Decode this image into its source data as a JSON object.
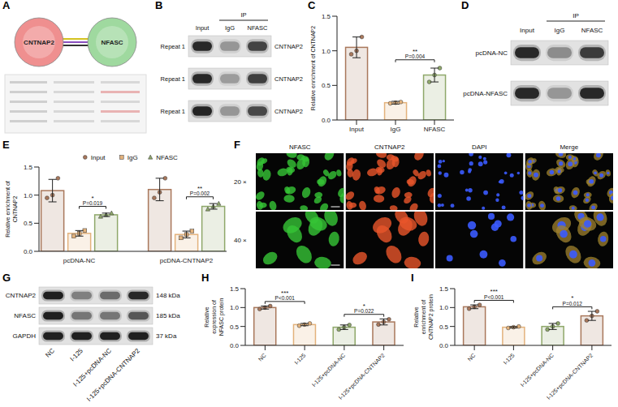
{
  "chart_data": [
    {
      "panel": "C",
      "type": "bar",
      "categories": [
        "Input",
        "IgG",
        "NFASC"
      ],
      "values": [
        1.05,
        0.25,
        0.65
      ],
      "errors": [
        0.15,
        0.02,
        0.1
      ],
      "points": [
        [
          0.95,
          1.0,
          1.2
        ],
        [
          0.24,
          0.25,
          0.26
        ],
        [
          0.55,
          0.65,
          0.75
        ]
      ],
      "colors": [
        "#a9785c",
        "#e3b27c",
        "#8fa86a"
      ],
      "marker": "circle",
      "ylabel": "Relative enrichment of CNTNAP2",
      "ylim": [
        0,
        1.5
      ],
      "yticks": [
        {
          "value": 0,
          "label": "0.0"
        },
        0.5,
        {
          "value": 1,
          "label": "1.0"
        },
        1.5
      ],
      "annotations": [
        {
          "from": "IgG",
          "to": "NFASC",
          "text": "**",
          "p": "P=0.004"
        }
      ]
    },
    {
      "panel": "E",
      "type": "bar",
      "categories": [
        "pcDNA-NC",
        "pcDNA-CNTNAP2"
      ],
      "series": [
        {
          "name": "Input",
          "color": "#a9785c",
          "marker": "circle",
          "values": [
            1.08,
            1.1
          ],
          "errors": [
            0.2,
            0.2
          ],
          "points": [
            [
              0.95,
              1.0,
              1.3
            ],
            [
              0.95,
              1.05,
              1.3
            ]
          ]
        },
        {
          "name": "IgG",
          "color": "#e3b27c",
          "marker": "square",
          "values": [
            0.32,
            0.3
          ],
          "errors": [
            0.05,
            0.06
          ],
          "points": [
            [
              0.27,
              0.32,
              0.37
            ],
            [
              0.24,
              0.3,
              0.36
            ]
          ]
        },
        {
          "name": "NFASC",
          "color": "#8fa86a",
          "marker": "triangle",
          "values": [
            0.65,
            0.8
          ],
          "errors": [
            0.03,
            0.05
          ],
          "points": [
            [
              0.62,
              0.65,
              0.68
            ],
            [
              0.75,
              0.8,
              0.85
            ]
          ]
        }
      ],
      "legend": "top",
      "ylabel": "Relative enrichment of CNTNAP2",
      "ylim": [
        0,
        1.5
      ],
      "yticks": [
        {
          "value": 0,
          "label": "0.0"
        },
        0.5,
        {
          "value": 1,
          "label": "1.0"
        },
        1.5
      ],
      "annotations": [
        {
          "category": "pcDNA-NC",
          "from": "IgG",
          "to": "NFASC",
          "text": "*",
          "p": "P=0.019"
        },
        {
          "category": "pcDNA-CNTNAP2",
          "from": "IgG",
          "to": "NFASC",
          "text": "**",
          "p": "P=0.002"
        }
      ]
    },
    {
      "panel": "H",
      "type": "bar",
      "categories": [
        "NC",
        "I-125",
        "I-125+pcDNA-NC",
        "I-125+pcDNA-CNTNAP2"
      ],
      "values": [
        1.0,
        0.55,
        0.48,
        0.62
      ],
      "errors": [
        0.04,
        0.03,
        0.06,
        0.08
      ],
      "points": [
        [
          0.96,
          1.0,
          1.04
        ],
        [
          0.52,
          0.55,
          0.58
        ],
        [
          0.42,
          0.48,
          0.54
        ],
        [
          0.55,
          0.62,
          0.69
        ]
      ],
      "colors": [
        "#a9785c",
        "#e3b27c",
        "#8fa86a",
        "#a9785c"
      ],
      "marker": "circle",
      "ylabel": "Relative expression of NFASC protein",
      "ylim": [
        0,
        1.5
      ],
      "yticks": [
        {
          "value": 0,
          "label": "0.0"
        },
        0.5,
        {
          "value": 1,
          "label": "1.0"
        },
        1.5
      ],
      "annotations": [
        {
          "from": "NC",
          "to": "I-125",
          "text": "***",
          "p": "P<0.001"
        },
        {
          "from": "I-125+pcDNA-NC",
          "to": "I-125+pcDNA-CNTNAP2",
          "text": "*",
          "p": "P=0.022"
        }
      ]
    },
    {
      "panel": "I",
      "type": "bar",
      "categories": [
        "NC",
        "I-125",
        "I-125+pcDNA-NC",
        "I-125+pcDNA-CNTNAP2"
      ],
      "values": [
        1.02,
        0.48,
        0.5,
        0.78
      ],
      "errors": [
        0.05,
        0.02,
        0.08,
        0.12
      ],
      "points": [
        [
          0.97,
          1.02,
          1.07
        ],
        [
          0.46,
          0.48,
          0.5
        ],
        [
          0.42,
          0.5,
          0.58
        ],
        [
          0.66,
          0.78,
          0.9
        ]
      ],
      "colors": [
        "#a9785c",
        "#e3b27c",
        "#8fa86a",
        "#a9785c"
      ],
      "marker": "circle",
      "ylabel": "Relative enrichment of CNTNAP2 protein",
      "ylim": [
        0,
        1.5
      ],
      "yticks": [
        {
          "value": 0,
          "label": "0.0"
        },
        0.5,
        {
          "value": 1,
          "label": "1.0"
        },
        1.5
      ],
      "annotations": [
        {
          "from": "NC",
          "to": "I-125",
          "text": "***",
          "p": "P<0.001"
        },
        {
          "from": "I-125+pcDNA-NC",
          "to": "I-125+pcDNA-CNTNAP2",
          "text": "*",
          "p": "P=0.012"
        }
      ]
    }
  ],
  "diagram": {
    "panel": "A",
    "nodes": [
      {
        "label": "CNTNAP2",
        "color": "#ef8f8f"
      },
      {
        "label": "NFASC",
        "color": "#9fd99f"
      }
    ]
  },
  "blots": [
    {
      "panel": "B",
      "header": "IP",
      "columns": [
        "Input",
        "IgG",
        "NFASC"
      ],
      "rows": [
        "Repeat 1",
        "Repeat 1",
        "Repeat 1"
      ],
      "right_labels": [
        "CNTNAP2",
        "CNTNAP2",
        "CNTNAP2"
      ]
    },
    {
      "panel": "D",
      "header": "IP",
      "columns": [
        "Input",
        "IgG",
        "NFASC"
      ],
      "rows": [
        "pcDNA-NC",
        "pcDNA-NFASC"
      ]
    },
    {
      "panel": "G",
      "columns": [
        "NC",
        "I-125",
        "I-125+pcDNA-NC",
        "I-125+pcDNA-CNTNAP2"
      ],
      "rows": [
        "CNTNAP2",
        "NFASC",
        "GAPDH"
      ],
      "right_labels": [
        "148 kDa",
        "185 kDa",
        "37 kDa"
      ]
    }
  ],
  "images": {
    "panel": "F",
    "columns": [
      "NFASC",
      "CNTNAP2",
      "DAPI",
      "Merge"
    ],
    "rows": [
      "20 ×",
      "40 ×"
    ]
  }
}
